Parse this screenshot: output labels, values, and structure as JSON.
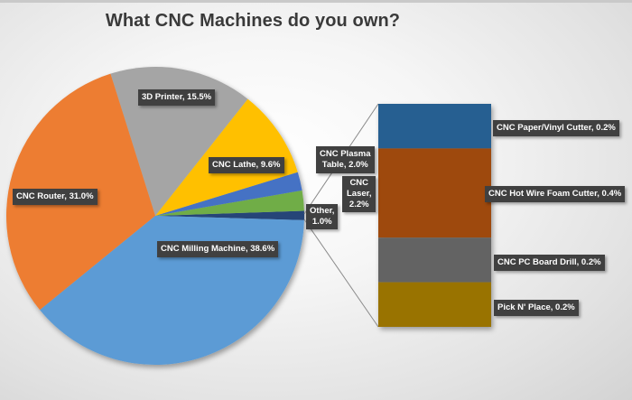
{
  "title": "What CNC Machines do you own?",
  "colors": {
    "milling": "#5b9bd5",
    "router": "#ed7d31",
    "printer3d": "#a5a5a5",
    "lathe": "#ffc000",
    "plasma": "#4472c4",
    "laser": "#70ad47",
    "other": "#264478",
    "paper_vinyl": "#255e91",
    "hot_wire": "#9e480e",
    "pc_board": "#636363",
    "pick_place": "#997300"
  },
  "labels": {
    "milling": "CNC Milling  Machine,  38.6%",
    "router": "CNC Router, 31.0%",
    "printer3d": "3D Printer, 15.5%",
    "lathe": "CNC Lathe, 9.6%",
    "plasma_line1": "CNC Plasma",
    "plasma_line2": "Table, 2.0%",
    "laser_line1": "CNC",
    "laser_line2": "Laser,",
    "laser_line3": "2.2%",
    "other_line1": "Other,",
    "other_line2": "1.0%",
    "paper_vinyl": "CNC Paper/Vinyl Cutter, 0.2%",
    "hot_wire": "CNC Hot Wire Foam Cutter, 0.4%",
    "pc_board": "CNC PC Board Drill,  0.2%",
    "pick_place": "Pick N' Place,  0.2%"
  },
  "chart_data": {
    "type": "pie-of-pie (pie with stacked bar breakout)",
    "title": "What CNC Machines do you own?",
    "pie": {
      "start_angle_deg": -1.7,
      "slices": [
        {
          "name": "Other",
          "value": 1.0,
          "color": "#264478"
        },
        {
          "name": "CNC Laser",
          "value": 2.2,
          "color": "#70ad47"
        },
        {
          "name": "CNC Plasma Table",
          "value": 2.0,
          "color": "#4472c4"
        },
        {
          "name": "CNC Lathe",
          "value": 9.6,
          "color": "#ffc000"
        },
        {
          "name": "3D Printer",
          "value": 15.5,
          "color": "#a5a5a5"
        },
        {
          "name": "CNC Router",
          "value": 31.0,
          "color": "#ed7d31"
        },
        {
          "name": "CNC Milling Machine",
          "value": 38.6,
          "color": "#5b9bd5"
        }
      ]
    },
    "breakout_of": "Other",
    "bar": {
      "segments": [
        {
          "name": "CNC Paper/Vinyl Cutter",
          "value": 0.2,
          "color": "#255e91"
        },
        {
          "name": "CNC Hot Wire Foam Cutter",
          "value": 0.4,
          "color": "#9e480e"
        },
        {
          "name": "CNC PC Board Drill",
          "value": 0.2,
          "color": "#636363"
        },
        {
          "name": "Pick N' Place",
          "value": 0.2,
          "color": "#997300"
        }
      ]
    },
    "units": "%",
    "legend": "none (data labels on slices)"
  }
}
